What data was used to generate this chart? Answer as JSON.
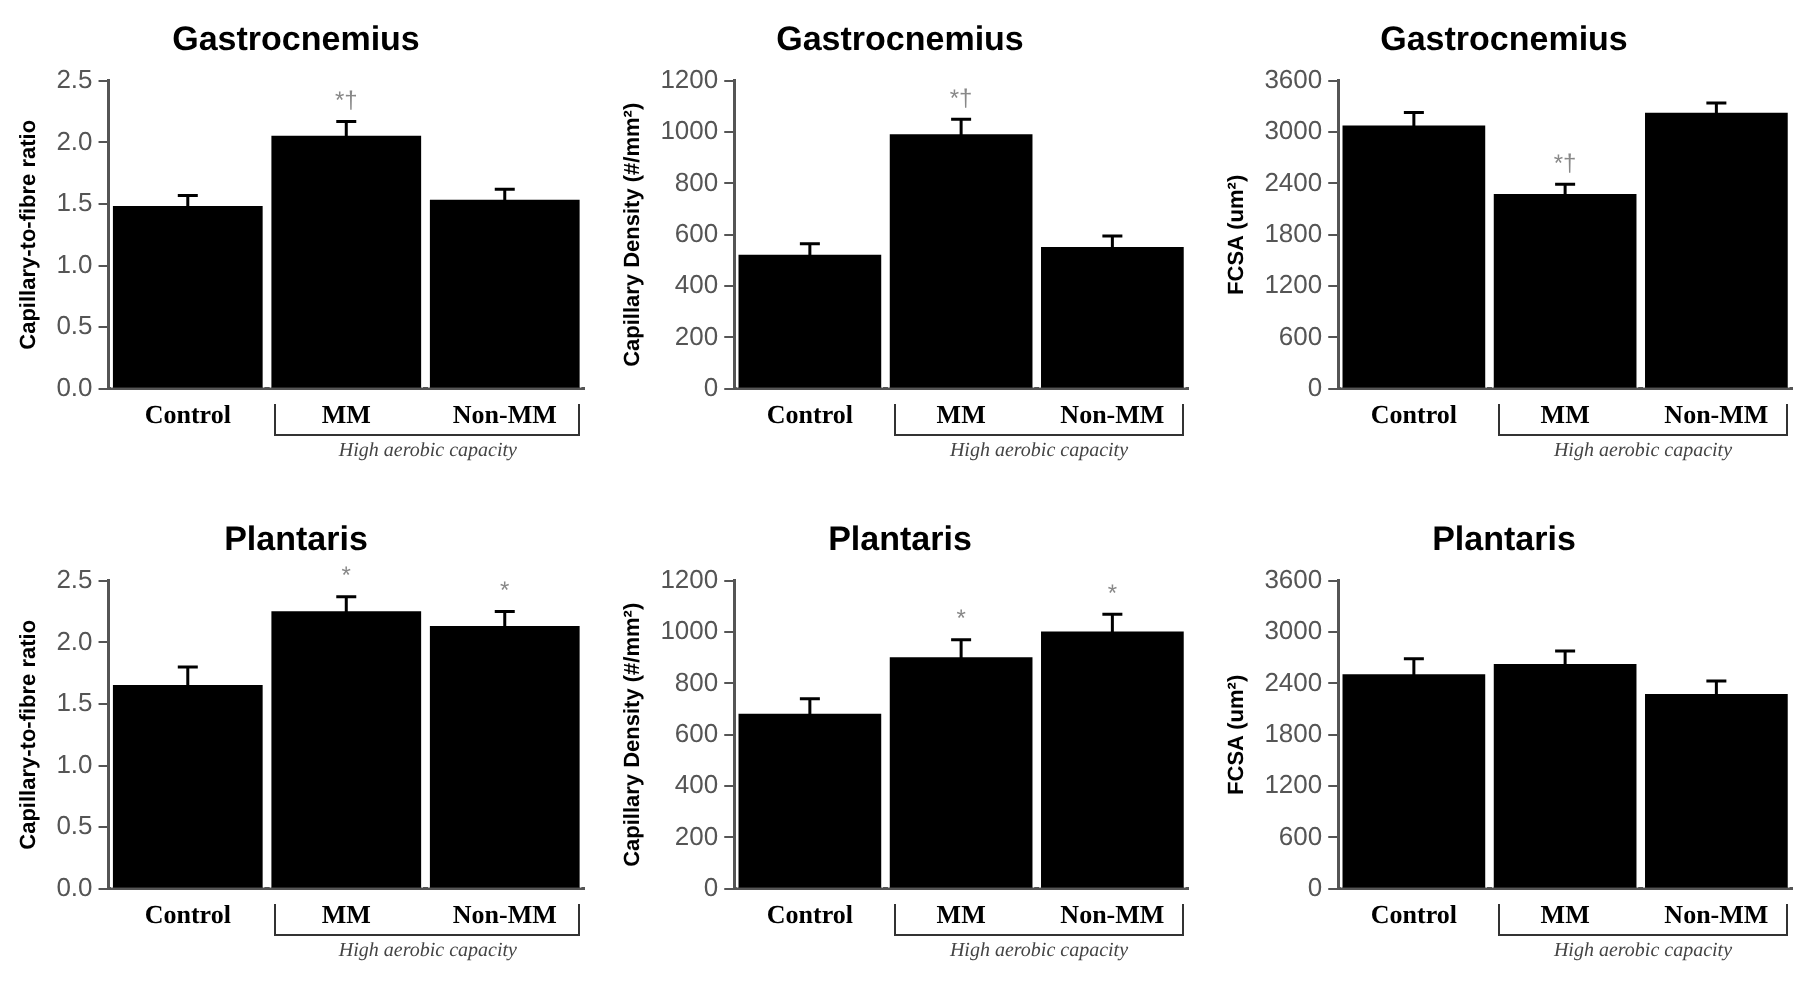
{
  "chart_data": [
    {
      "type": "bar",
      "title": "Gastrocnemius",
      "ylabel": "Capillary-to-fibre ratio",
      "categories": [
        "Control",
        "MM",
        "Non-MM"
      ],
      "values": [
        1.5,
        2.07,
        1.55
      ],
      "errors": [
        0.07,
        0.1,
        0.07
      ],
      "color": "#000000",
      "ylim": [
        0,
        2.5
      ],
      "yticks": [
        {
          "value": 0,
          "label": "0.0"
        },
        {
          "value": 0.5,
          "label": "0.5"
        },
        {
          "value": 1,
          "label": "1.0"
        },
        {
          "value": 1.5,
          "label": "1.5"
        },
        {
          "value": 2,
          "label": "2.0"
        },
        {
          "value": 2.5,
          "label": "2.5"
        }
      ],
      "grid": false,
      "legend": false,
      "annotations": [
        {
          "text": "*†",
          "x": "MM",
          "y": 2.07
        },
        "High aerobic capacity"
      ]
    },
    {
      "type": "bar",
      "title": "Gastrocnemius",
      "ylabel": "Capillary Density (#/mm²)",
      "categories": [
        "Control",
        "MM",
        "Non-MM"
      ],
      "values": [
        530,
        1000,
        560
      ],
      "errors": [
        35,
        50,
        35
      ],
      "color": "#000000",
      "ylim": [
        0,
        1200
      ],
      "yticks": [
        0,
        200,
        400,
        600,
        800,
        1000,
        1200
      ],
      "grid": false,
      "legend": false,
      "annotations": [
        {
          "text": "*†",
          "x": "MM",
          "y": 1000
        },
        "High aerobic capacity"
      ]
    },
    {
      "type": "bar",
      "title": "Gastrocnemius",
      "ylabel": "FCSA (um²)",
      "categories": [
        "Control",
        "MM",
        "Non-MM"
      ],
      "values": [
        3100,
        2300,
        3250
      ],
      "errors": [
        130,
        90,
        90
      ],
      "color": "#000000",
      "ylim": [
        0,
        3600
      ],
      "yticks": [
        0,
        600,
        1200,
        1800,
        2400,
        3000,
        3600
      ],
      "grid": false,
      "legend": false,
      "annotations": [
        {
          "text": "*†",
          "x": "MM",
          "y": 2300
        },
        "High aerobic capacity"
      ]
    },
    {
      "type": "bar",
      "title": "Plantaris",
      "ylabel": "Capillary-to-fibre ratio",
      "categories": [
        "Control",
        "MM",
        "Non-MM"
      ],
      "values": [
        1.67,
        2.27,
        2.15
      ],
      "errors": [
        0.13,
        0.1,
        0.1
      ],
      "color": "#000000",
      "ylim": [
        0,
        2.5
      ],
      "yticks": [
        {
          "value": 0,
          "label": "0.0"
        },
        {
          "value": 0.5,
          "label": "0.5"
        },
        {
          "value": 1,
          "label": "1.0"
        },
        {
          "value": 1.5,
          "label": "1.5"
        },
        {
          "value": 2,
          "label": "2.0"
        },
        {
          "value": 2.5,
          "label": "2.5"
        }
      ],
      "grid": false,
      "legend": false,
      "annotations": [
        {
          "text": "*",
          "x": "MM",
          "y": 2.27
        },
        {
          "text": "*",
          "x": "Non-MM",
          "y": 2.15
        },
        "High aerobic capacity"
      ]
    },
    {
      "type": "bar",
      "title": "Plantaris",
      "ylabel": "Capillary Density (#/mm²)",
      "categories": [
        "Control",
        "MM",
        "Non-MM"
      ],
      "values": [
        690,
        910,
        1010
      ],
      "errors": [
        50,
        60,
        60
      ],
      "color": "#000000",
      "ylim": [
        0,
        1200
      ],
      "yticks": [
        0,
        200,
        400,
        600,
        800,
        1000,
        1200
      ],
      "grid": false,
      "legend": false,
      "annotations": [
        {
          "text": "*",
          "x": "MM",
          "y": 910
        },
        {
          "text": "*",
          "x": "Non-MM",
          "y": 1010
        },
        "High aerobic capacity"
      ]
    },
    {
      "type": "bar",
      "title": "Plantaris",
      "ylabel": "FCSA (um²)",
      "categories": [
        "Control",
        "MM",
        "Non-MM"
      ],
      "values": [
        2530,
        2650,
        2300
      ],
      "errors": [
        160,
        130,
        130
      ],
      "color": "#000000",
      "ylim": [
        0,
        3600
      ],
      "yticks": [
        0,
        600,
        1200,
        1800,
        2400,
        3000,
        3600
      ],
      "grid": false,
      "legend": false,
      "annotations": [
        "High aerobic capacity"
      ]
    }
  ]
}
